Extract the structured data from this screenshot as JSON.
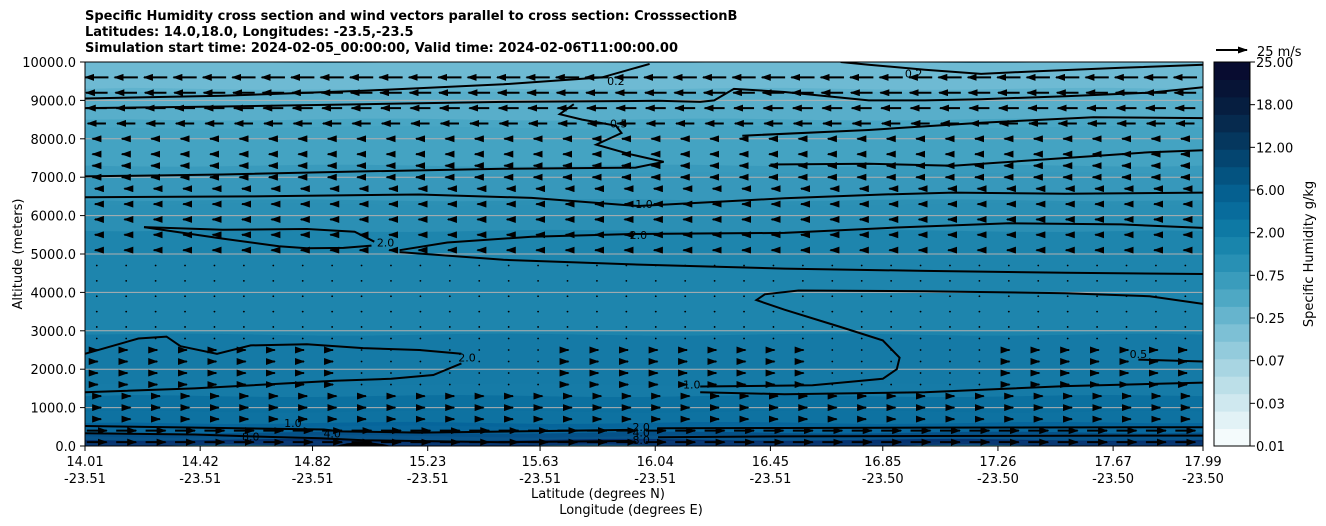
{
  "chart_data": {
    "type": "contour",
    "title_lines": [
      "Specific Humidity cross section and wind vectors parallel to cross section: CrosssectionB",
      "Latitudes: 14.0,18.0, Longitudes: -23.5,-23.5",
      "Simulation start time: 2024-02-05_00:00:00, Valid time: 2024-02-06T11:00:00.00"
    ],
    "xlabel_lines": [
      "Latitude (degrees N)",
      "Longitude (degrees E)"
    ],
    "ylabel": "Altitude (meters)",
    "ylim": [
      0,
      10000
    ],
    "xlim": [
      14.01,
      17.99
    ],
    "x_ticks": [
      {
        "lat": "14.01",
        "lon": "-23.51",
        "v": 14.01
      },
      {
        "lat": "14.42",
        "lon": "-23.51",
        "v": 14.42
      },
      {
        "lat": "14.82",
        "lon": "-23.51",
        "v": 14.82
      },
      {
        "lat": "15.23",
        "lon": "-23.51",
        "v": 15.23
      },
      {
        "lat": "15.63",
        "lon": "-23.51",
        "v": 15.63
      },
      {
        "lat": "16.04",
        "lon": "-23.51",
        "v": 16.04
      },
      {
        "lat": "16.45",
        "lon": "-23.51",
        "v": 16.45
      },
      {
        "lat": "16.85",
        "lon": "-23.50",
        "v": 16.85
      },
      {
        "lat": "17.26",
        "lon": "-23.50",
        "v": 17.26
      },
      {
        "lat": "17.67",
        "lon": "-23.50",
        "v": 17.67
      },
      {
        "lat": "17.99",
        "lon": "-23.50",
        "v": 17.99
      }
    ],
    "y_ticks": [
      "0.0",
      "1000.0",
      "2000.0",
      "3000.0",
      "4000.0",
      "5000.0",
      "6000.0",
      "7000.0",
      "8000.0",
      "9000.0",
      "10000.0"
    ],
    "y_tick_values": [
      0,
      1000,
      2000,
      3000,
      4000,
      5000,
      6000,
      7000,
      8000,
      9000,
      10000
    ],
    "colorbar": {
      "label": "Specific Humidity g/kg",
      "tick_labels": [
        "0.01",
        "0.03",
        "0.07",
        "0.25",
        "0.75",
        "2.00",
        "6.00",
        "12.00",
        "18.00",
        "25.00"
      ],
      "colors": [
        "#f4fbfc",
        "#e2f2f6",
        "#cfe8ef",
        "#bcdfe8",
        "#a8d5e2",
        "#93cbdc",
        "#7dc0d5",
        "#66b4cd",
        "#4ea8c4",
        "#3a9cbc",
        "#2890b4",
        "#1985ac",
        "#0e79a4",
        "#086c9c",
        "#056090",
        "#045380",
        "#044570",
        "#05375e",
        "#062a4e",
        "#061e40",
        "#071436",
        "#080c30"
      ]
    },
    "vector_key": {
      "label": "25 m/s",
      "magnitude": 25
    },
    "contour_labels": [
      {
        "text": "0.2",
        "lat": 15.9,
        "alt": 9500
      },
      {
        "text": "0.2",
        "lat": 16.96,
        "alt": 9700
      },
      {
        "text": "0.5",
        "lat": 15.91,
        "alt": 8400
      },
      {
        "text": "1.0",
        "lat": 16.0,
        "alt": 6300
      },
      {
        "text": "2.0",
        "lat": 15.08,
        "alt": 5300
      },
      {
        "text": "2.0",
        "lat": 15.98,
        "alt": 5500
      },
      {
        "text": "2.0",
        "lat": 15.37,
        "alt": 2300
      },
      {
        "text": "1.0",
        "lat": 16.17,
        "alt": 1600
      },
      {
        "text": "0.5",
        "lat": 17.76,
        "alt": 2400
      },
      {
        "text": "1.0",
        "lat": 14.75,
        "alt": 600
      },
      {
        "text": "8.0",
        "lat": 14.6,
        "alt": 250
      },
      {
        "text": "4.0",
        "lat": 14.89,
        "alt": 330
      },
      {
        "text": "2.0",
        "lat": 15.99,
        "alt": 500
      },
      {
        "text": "4.0",
        "lat": 15.99,
        "alt": 350
      },
      {
        "text": "8.0",
        "lat": 15.99,
        "alt": 150
      }
    ],
    "contours": [
      {
        "level": "0.2",
        "segments": [
          [
            [
              14.01,
              9050
            ],
            [
              14.5,
              9120
            ],
            [
              15.0,
              9250
            ],
            [
              15.5,
              9420
            ],
            [
              15.85,
              9600
            ],
            [
              16.02,
              9950
            ]
          ],
          [
            [
              16.7,
              10000
            ],
            [
              16.8,
              9930
            ],
            [
              17.0,
              9800
            ],
            [
              17.2,
              9690
            ],
            [
              17.4,
              9760
            ],
            [
              17.7,
              9850
            ],
            [
              17.99,
              9930
            ]
          ]
        ]
      },
      {
        "level": "0.5",
        "segments": [
          [
            [
              14.01,
              8800
            ],
            [
              14.5,
              8840
            ],
            [
              15.0,
              8900
            ],
            [
              15.5,
              8960
            ],
            [
              15.83,
              8980
            ],
            [
              16.05,
              8990
            ],
            [
              16.2,
              8960
            ],
            [
              16.25,
              9000
            ],
            [
              16.32,
              9300
            ],
            [
              16.5,
              9220
            ],
            [
              16.8,
              9000
            ],
            [
              17.0,
              9000
            ],
            [
              17.2,
              9030
            ],
            [
              17.5,
              9110
            ],
            [
              17.8,
              9200
            ],
            [
              17.99,
              9340
            ]
          ],
          [
            [
              15.75,
              8900
            ],
            [
              15.7,
              8640
            ],
            [
              15.78,
              8500
            ],
            [
              15.9,
              8340
            ],
            [
              15.92,
              8150
            ],
            [
              15.83,
              7850
            ],
            [
              15.95,
              7600
            ],
            [
              16.07,
              7400
            ],
            [
              15.97,
              7250
            ],
            [
              15.5,
              7220
            ],
            [
              15.0,
              7150
            ],
            [
              14.5,
              7070
            ],
            [
              14.01,
              7020
            ]
          ],
          [
            [
              16.45,
              7330
            ],
            [
              16.8,
              7350
            ],
            [
              17.1,
              7300
            ],
            [
              17.5,
              7500
            ],
            [
              17.8,
              7650
            ],
            [
              17.99,
              7700
            ]
          ],
          [
            [
              16.35,
              8080
            ],
            [
              16.8,
              8230
            ],
            [
              17.2,
              8420
            ],
            [
              17.6,
              8560
            ],
            [
              17.99,
              8540
            ]
          ]
        ]
      },
      {
        "level": "1.0",
        "segments": [
          [
            [
              14.01,
              6480
            ],
            [
              14.6,
              6500
            ],
            [
              15.2,
              6550
            ],
            [
              15.6,
              6460
            ],
            [
              15.98,
              6250
            ],
            [
              16.5,
              6450
            ],
            [
              16.85,
              6550
            ],
            [
              17.1,
              6600
            ],
            [
              17.5,
              6570
            ],
            [
              17.99,
              6600
            ]
          ],
          [
            [
              16.2,
              1550
            ],
            [
              16.6,
              1580
            ],
            [
              16.85,
              1750
            ],
            [
              16.9,
              2000
            ],
            [
              16.91,
              2300
            ],
            [
              16.85,
              2750
            ],
            [
              16.7,
              3100
            ],
            [
              16.5,
              3550
            ],
            [
              16.4,
              3800
            ],
            [
              16.43,
              3950
            ],
            [
              16.55,
              4050
            ],
            [
              17.0,
              4030
            ],
            [
              17.5,
              3980
            ],
            [
              17.8,
              3900
            ],
            [
              17.99,
              3700
            ]
          ],
          [
            [
              17.76,
              2250
            ],
            [
              17.99,
              2200
            ]
          ],
          [
            [
              16.2,
              1400
            ],
            [
              16.5,
              1350
            ],
            [
              17.0,
              1400
            ],
            [
              17.5,
              1560
            ],
            [
              17.99,
              1650
            ]
          ]
        ]
      },
      {
        "level": "2.0",
        "segments": [
          [
            [
              14.22,
              5700
            ],
            [
              14.5,
              5630
            ],
            [
              14.8,
              5650
            ],
            [
              14.97,
              5580
            ],
            [
              15.04,
              5320
            ]
          ],
          [
            [
              14.22,
              5700
            ],
            [
              14.5,
              5400
            ],
            [
              14.7,
              5200
            ],
            [
              14.8,
              5150
            ],
            [
              14.93,
              5160
            ],
            [
              15.03,
              5220
            ]
          ],
          [
            [
              15.13,
              5100
            ],
            [
              15.3,
              5300
            ],
            [
              15.6,
              5450
            ],
            [
              15.96,
              5520
            ],
            [
              16.5,
              5550
            ],
            [
              16.9,
              5690
            ],
            [
              17.3,
              5800
            ],
            [
              17.7,
              5770
            ],
            [
              17.99,
              5680
            ]
          ],
          [
            [
              15.13,
              5050
            ],
            [
              15.5,
              4850
            ],
            [
              16.0,
              4720
            ],
            [
              16.5,
              4620
            ],
            [
              17.0,
              4560
            ],
            [
              17.5,
              4510
            ],
            [
              17.99,
              4480
            ]
          ],
          [
            [
              14.01,
              2400
            ],
            [
              14.2,
              2800
            ],
            [
              14.3,
              2850
            ],
            [
              14.35,
              2600
            ],
            [
              14.48,
              2400
            ],
            [
              14.6,
              2620
            ],
            [
              14.8,
              2650
            ],
            [
              15.0,
              2550
            ],
            [
              15.2,
              2500
            ],
            [
              15.35,
              2400
            ]
          ],
          [
            [
              14.01,
              1400
            ],
            [
              14.4,
              1500
            ],
            [
              14.9,
              1700
            ],
            [
              15.1,
              1750
            ],
            [
              15.25,
              1850
            ],
            [
              15.35,
              2150
            ]
          ]
        ]
      },
      {
        "level": "4.0",
        "segments": [
          [
            [
              14.01,
              520
            ],
            [
              14.5,
              470
            ],
            [
              14.86,
              430
            ],
            [
              14.92,
              380
            ],
            [
              15.2,
              350
            ],
            [
              15.95,
              420
            ]
          ],
          [
            [
              16.05,
              460
            ],
            [
              16.5,
              470
            ],
            [
              17.0,
              480
            ],
            [
              17.99,
              490
            ]
          ]
        ]
      },
      {
        "level": "8.0",
        "segments": [
          [
            [
              14.01,
              330
            ],
            [
              14.4,
              300
            ],
            [
              14.6,
              250
            ],
            [
              14.85,
              200
            ],
            [
              15.0,
              150
            ],
            [
              15.5,
              100
            ],
            [
              15.95,
              130
            ]
          ],
          [
            [
              16.05,
              230
            ],
            [
              16.5,
              250
            ],
            [
              17.0,
              260
            ],
            [
              17.99,
              270
            ]
          ]
        ]
      }
    ],
    "terrain_peak": {
      "lat": 15.0,
      "alt": 200
    }
  }
}
